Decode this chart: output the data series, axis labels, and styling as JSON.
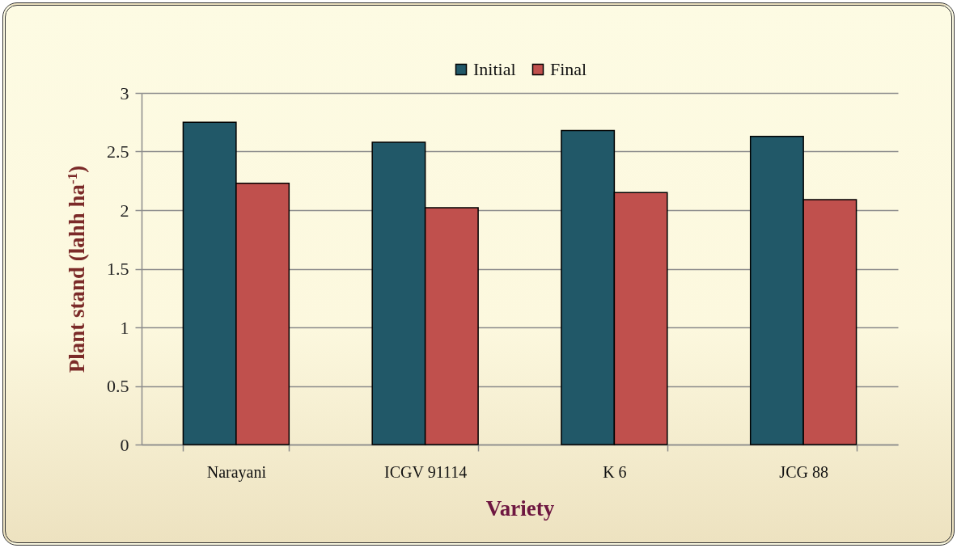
{
  "chart_data": {
    "type": "bar",
    "xlabel": "Variety",
    "ylabel": "Plant stand (lahh ha$^{-1}$)",
    "categories": [
      "Narayani",
      "ICGV 91114",
      "K 6",
      "JCG 88"
    ],
    "series": [
      {
        "name": "Initial",
        "color": "#215868",
        "values": [
          2.75,
          2.58,
          2.68,
          2.63
        ]
      },
      {
        "name": "Final",
        "color": "#c0504d",
        "values": [
          2.23,
          2.02,
          2.15,
          2.09
        ]
      }
    ],
    "ylim": [
      0,
      3
    ],
    "yticks": [
      0,
      0.5,
      1,
      1.5,
      2,
      2.5,
      3
    ],
    "grid": "y",
    "legend": "top"
  }
}
